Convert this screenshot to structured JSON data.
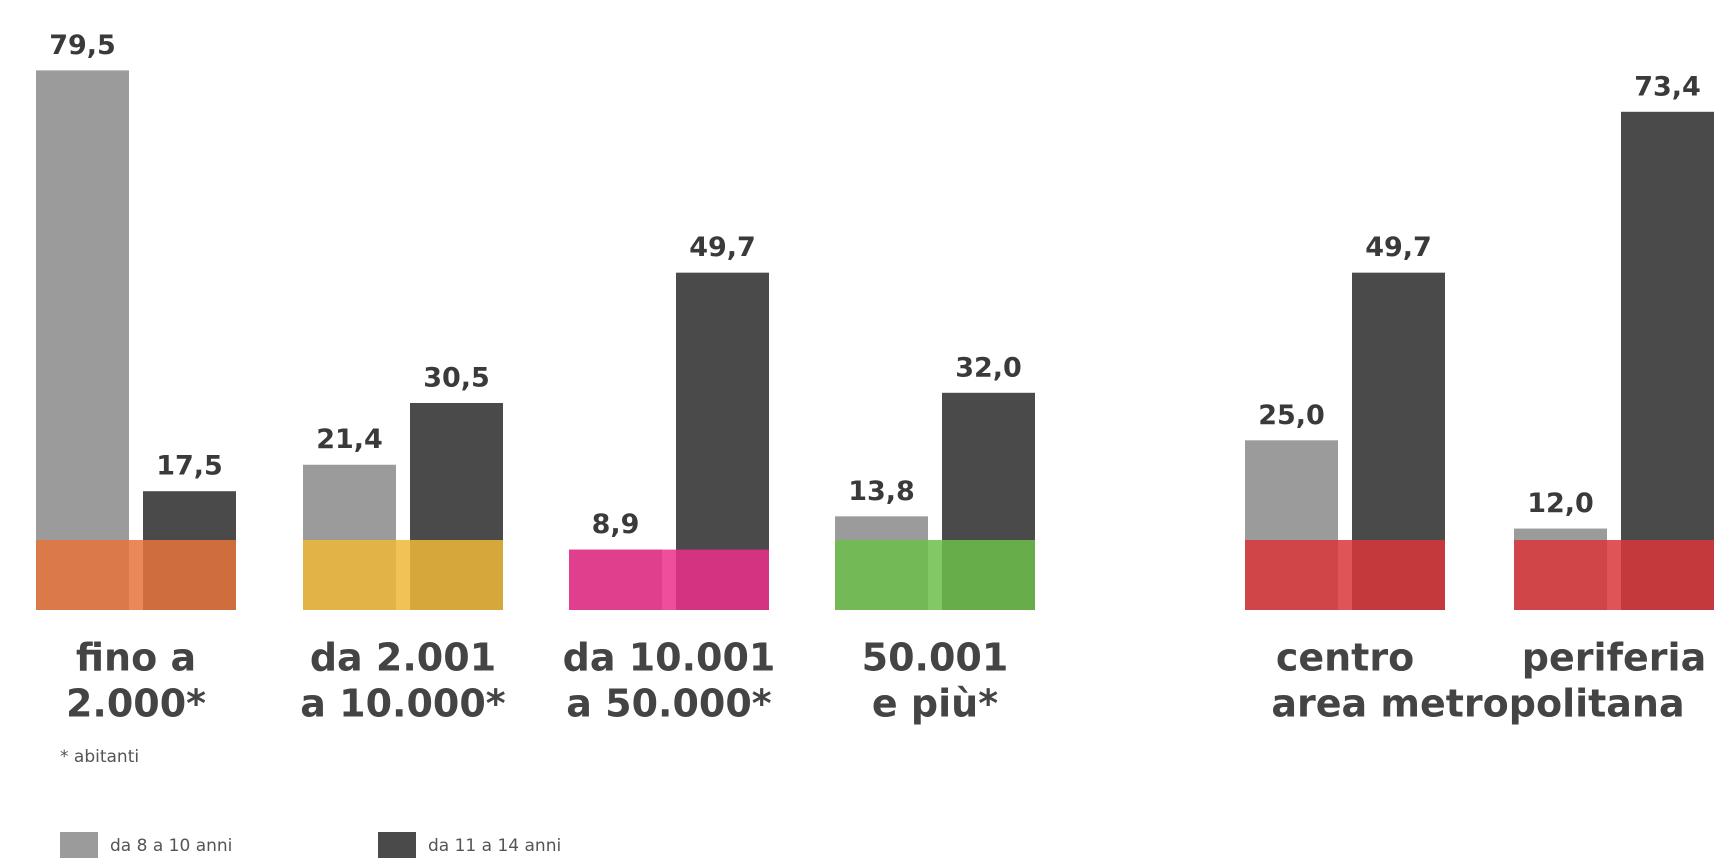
{
  "chart_data": {
    "type": "bar",
    "categories": [
      [
        "fino a",
        "2.000*"
      ],
      [
        "da 2.001",
        "a 10.000*"
      ],
      [
        "da 10.001",
        "a 50.000*"
      ],
      [
        "50.001",
        "e più*"
      ],
      [
        "centro"
      ],
      [
        "periferia"
      ]
    ],
    "group_label": "area metropolitana",
    "footnote": "* abitanti",
    "series": [
      {
        "name": "da 8 a 10 anni",
        "color": "#9b9b9b",
        "values": [
          79.5,
          21.4,
          8.9,
          13.8,
          25.0,
          12.0
        ],
        "value_labels": [
          "79,5",
          "21,4",
          "8,9",
          "13,8",
          "25,0",
          "12,0"
        ]
      },
      {
        "name": "da 11 a 14 anni",
        "color": "#4a4a4a",
        "values": [
          17.5,
          30.5,
          49.7,
          32.0,
          49.7,
          73.4
        ],
        "value_labels": [
          "17,5",
          "30,5",
          "49,7",
          "32,0",
          "49,7",
          "73,4"
        ]
      }
    ],
    "ylim": [
      0,
      80
    ]
  }
}
